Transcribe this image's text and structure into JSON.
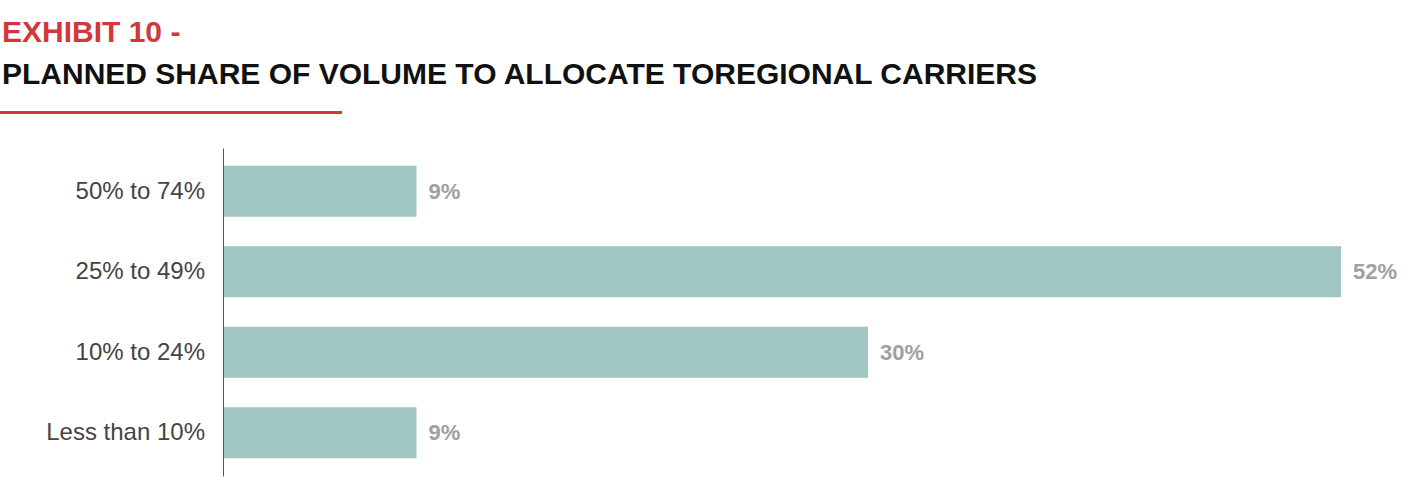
{
  "chart_data": {
    "type": "bar",
    "orientation": "horizontal",
    "title": "EXHIBIT 10 -",
    "subtitle": "PLANNED SHARE OF VOLUME TO ALLOCATE TOREGIONAL CARRIERS",
    "categories": [
      "50% to 74%",
      "25% to 49%",
      "10% to 24%",
      "Less than 10%"
    ],
    "values": [
      9,
      52,
      30,
      9
    ],
    "value_labels": [
      "9%",
      "52%",
      "30%",
      "9%"
    ],
    "color": "#a0c6c4",
    "xlim": [
      0,
      52
    ],
    "data_labels": true,
    "tick_labels": "y",
    "grid": false
  }
}
